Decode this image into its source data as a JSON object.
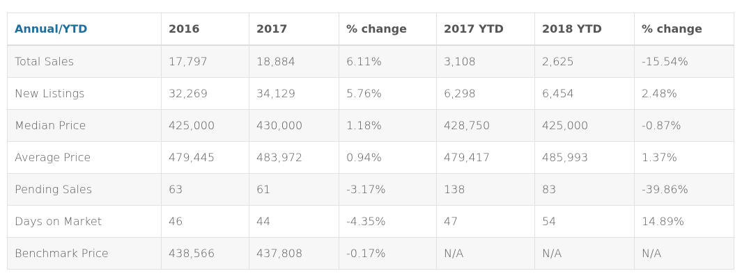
{
  "table": {
    "header": [
      "Annual/YTD",
      "2016",
      "2017",
      "% change",
      "2017 YTD",
      "2018 YTD",
      "% change"
    ],
    "rows": [
      [
        "Total Sales",
        "17,797",
        "18,884",
        "6.11%",
        "3,108",
        "2,625",
        "-15.54%"
      ],
      [
        "New Listings",
        "32,269",
        "34,129",
        "5.76%",
        "6,298",
        "6,454",
        "2.48%"
      ],
      [
        "Median Price",
        "425,000",
        "430,000",
        "1.18%",
        "428,750",
        "425,000",
        "-0.87%"
      ],
      [
        "Average Price",
        "479,445",
        "483,972",
        "0.94%",
        "479,417",
        "485,993",
        "1.37%"
      ],
      [
        "Pending Sales",
        "63",
        "61",
        "-3.17%",
        "138",
        "83",
        "-39.86%"
      ],
      [
        "Days on Market",
        "46",
        "44",
        "-4.35%",
        "47",
        "54",
        "14.89%"
      ],
      [
        "Benchmark Price",
        "438,566",
        "437,808",
        "-0.17%",
        "N/A",
        "N/A",
        "N/A"
      ]
    ]
  }
}
